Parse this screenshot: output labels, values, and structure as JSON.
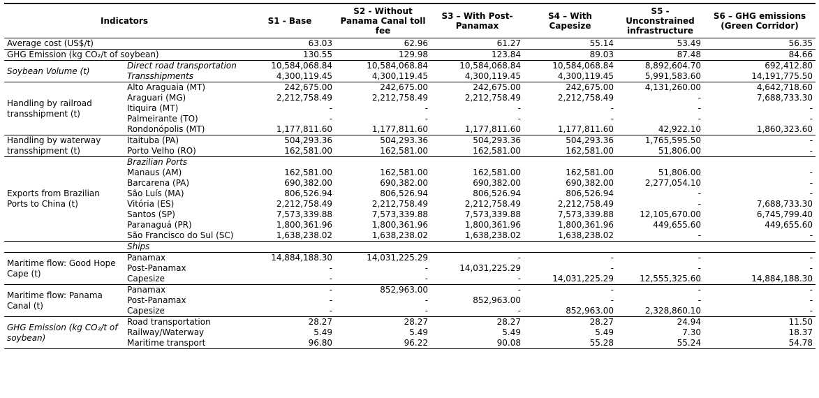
{
  "header": [
    "Indicators",
    "S1 - Base",
    "S2 - Without Panama Canal toll fee",
    "S3 – With Post-Panamax",
    "S4 – With Capesize",
    "S5 - Unconstrained infrastructure",
    "S6 – GHG emissions (Green Corridor)"
  ],
  "sections": [
    {
      "label": "Average cost (US$/t)",
      "values": [
        "63.03",
        "62.96",
        "61.27",
        "55.14",
        "53.49",
        "56.35"
      ]
    },
    {
      "label": "GHG Emission (kg CO₂/t of soybean)",
      "values": [
        "130.55",
        "129.98",
        "123.84",
        "89.03",
        "87.48",
        "84.66"
      ]
    },
    {
      "label": "Soybean Volume (t)",
      "italic": true,
      "italic_rows": true,
      "rows": [
        {
          "label": "Direct road transportation",
          "values": [
            "10,584,068.84",
            "10,584,068.84",
            "10,584,068.84",
            "10,584,068.84",
            "8,892,604.70",
            "692,412.80"
          ]
        },
        {
          "label": "Transshipments",
          "values": [
            "4,300,119.45",
            "4,300,119.45",
            "4,300,119.45",
            "4,300,119.45",
            "5,991,583.60",
            "14,191,775.50"
          ]
        }
      ]
    },
    {
      "label": "Handling by railroad transshipment (t)",
      "rows": [
        {
          "label": "Alto Araguaia (MT)",
          "values": [
            "242,675.00",
            "242,675.00",
            "242,675.00",
            "242,675.00",
            "4,131,260.00",
            "4,642,718.60"
          ]
        },
        {
          "label": "Araguari (MG)",
          "values": [
            "2,212,758.49",
            "2,212,758.49",
            "2,212,758.49",
            "2,212,758.49",
            "-",
            "7,688,733.30"
          ]
        },
        {
          "label": "Itiquira (MT)",
          "values": [
            "-",
            "-",
            "-",
            "-",
            "-",
            "-"
          ]
        },
        {
          "label": "Palmeirante (TO)",
          "values": [
            "-",
            "-",
            "-",
            "-",
            "-",
            "-"
          ]
        },
        {
          "label": "Rondonópolis (MT)",
          "values": [
            "1,177,811.60",
            "1,177,811.60",
            "1,177,811.60",
            "1,177,811.60",
            "42,922.10",
            "1,860,323.60"
          ]
        }
      ]
    },
    {
      "label": "Handling by waterway transshipment (t)",
      "rows": [
        {
          "label": "Itaituba (PA)",
          "values": [
            "504,293.36",
            "504,293.36",
            "504,293.36",
            "504,293.36",
            "1,765,595.50",
            "-"
          ]
        },
        {
          "label": "Porto Velho (RO)",
          "values": [
            "162,581.00",
            "162,581.00",
            "162,581.00",
            "162,581.00",
            "51,806.00",
            "-"
          ]
        }
      ]
    },
    {
      "label": "Exports from Brazilian Ports to China (t)",
      "heading": "Brazilian Ports",
      "rows": [
        {
          "label": "Manaus (AM)",
          "values": [
            "162,581.00",
            "162,581.00",
            "162,581.00",
            "162,581.00",
            "51,806.00",
            "-"
          ]
        },
        {
          "label": "Barcarena (PA)",
          "values": [
            "690,382.00",
            "690,382.00",
            "690,382.00",
            "690,382.00",
            "2,277,054.10",
            "-"
          ]
        },
        {
          "label": "São Luís (MA)",
          "values": [
            "806,526.94",
            "806,526.94",
            "806,526.94",
            "806,526.94",
            "-",
            "-"
          ]
        },
        {
          "label": "Vitória (ES)",
          "values": [
            "2,212,758.49",
            "2,212,758.49",
            "2,212,758.49",
            "2,212,758.49",
            "-",
            "7,688,733.30"
          ]
        },
        {
          "label": "Santos (SP)",
          "values": [
            "7,573,339.88",
            "7,573,339.88",
            "7,573,339.88",
            "7,573,339.88",
            "12,105,670.00",
            "6,745,799.40"
          ]
        },
        {
          "label": "Paranaguá (PR)",
          "values": [
            "1,800,361.96",
            "1,800,361.96",
            "1,800,361.96",
            "1,800,361.96",
            "449,655.60",
            "449,655.60"
          ]
        },
        {
          "label": "São Francisco do Sul (SC)",
          "values": [
            "1,638,238.02",
            "1,638,238.02",
            "1,638,238.02",
            "1,638,238.02",
            "-",
            "-"
          ]
        }
      ]
    },
    {
      "heading": "Ships"
    },
    {
      "label": "Maritime flow: Good Hope Cape (t)",
      "rows": [
        {
          "label": "Panamax",
          "values": [
            "14,884,188.30",
            "14,031,225.29",
            "-",
            "-",
            "-",
            "-"
          ]
        },
        {
          "label": "Post-Panamax",
          "values": [
            "-",
            "-",
            "14,031,225.29",
            "-",
            "-",
            "-"
          ]
        },
        {
          "label": "Capesize",
          "values": [
            "-",
            "-",
            "-",
            "14,031,225.29",
            "12,555,325.60",
            "14,884,188.30"
          ]
        }
      ]
    },
    {
      "label": "Maritime flow: Panama Canal (t)",
      "rows": [
        {
          "label": "Panamax",
          "values": [
            "-",
            "852,963.00",
            "-",
            "-",
            "-",
            "-"
          ]
        },
        {
          "label": "Post-Panamax",
          "values": [
            "-",
            "-",
            "852,963.00",
            "-",
            "-",
            "-"
          ]
        },
        {
          "label": "Capesize",
          "values": [
            "-",
            "-",
            "-",
            "852,963.00",
            "2,328,860.10",
            "-"
          ]
        }
      ]
    },
    {
      "label": "GHG Emission (kg CO₂/t of soybean)",
      "italic": true,
      "rows": [
        {
          "label": "Road transportation",
          "values": [
            "28.27",
            "28.27",
            "28.27",
            "28.27",
            "24.94",
            "11.50"
          ]
        },
        {
          "label": "Railway/Waterway",
          "values": [
            "5.49",
            "5.49",
            "5.49",
            "5.49",
            "7.30",
            "18.37"
          ]
        },
        {
          "label": "Maritime transport",
          "values": [
            "96.80",
            "96.22",
            "90.08",
            "55.28",
            "55.24",
            "54.78"
          ]
        }
      ]
    }
  ]
}
